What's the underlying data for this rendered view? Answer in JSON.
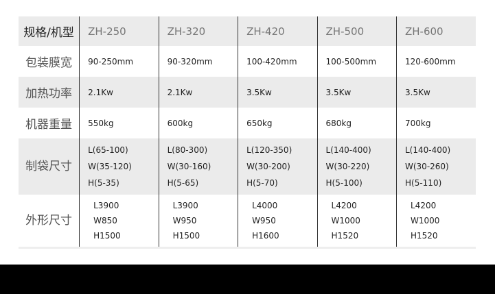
{
  "header": {
    "label": "规格/机型",
    "models": [
      "ZH-250",
      "ZH-320",
      "ZH-420",
      "ZH-500",
      "ZH-600"
    ]
  },
  "rows": [
    {
      "label": "包装膜宽",
      "values": [
        "90-250mm",
        "90-320mm",
        "100-420mm",
        "100-500mm",
        "120-600mm"
      ]
    },
    {
      "label": "加热功率",
      "values": [
        "2.1Kw",
        "2.1Kw",
        "3.5Kw",
        "3.5Kw",
        "3.5Kw"
      ]
    },
    {
      "label": "机器重量",
      "values": [
        "550kg",
        "600kg",
        "650kg",
        "680kg",
        "700kg"
      ]
    }
  ],
  "bag": {
    "label": "制袋尺寸",
    "values": [
      [
        "L(65-100)",
        "W(35-120)",
        "H(5-35)"
      ],
      [
        "L(80-300)",
        "W(30-160)",
        "H(5-65)"
      ],
      [
        "L(120-350)",
        "W(30-200)",
        "H(5-70)"
      ],
      [
        "L(140-400)",
        "W(30-220)",
        "H(5-100)"
      ],
      [
        "L(140-400)",
        "W(30-260)",
        "H(5-110)"
      ]
    ]
  },
  "dims": {
    "label": "外形尺寸",
    "values": [
      [
        "L3900",
        "W850",
        "H1500"
      ],
      [
        "L3900",
        "W950",
        "H1500"
      ],
      [
        "L4000",
        "W950",
        "H1600"
      ],
      [
        "L4200",
        "W1000",
        "H1520"
      ],
      [
        "L4200",
        "W1000",
        "H1520"
      ]
    ]
  }
}
